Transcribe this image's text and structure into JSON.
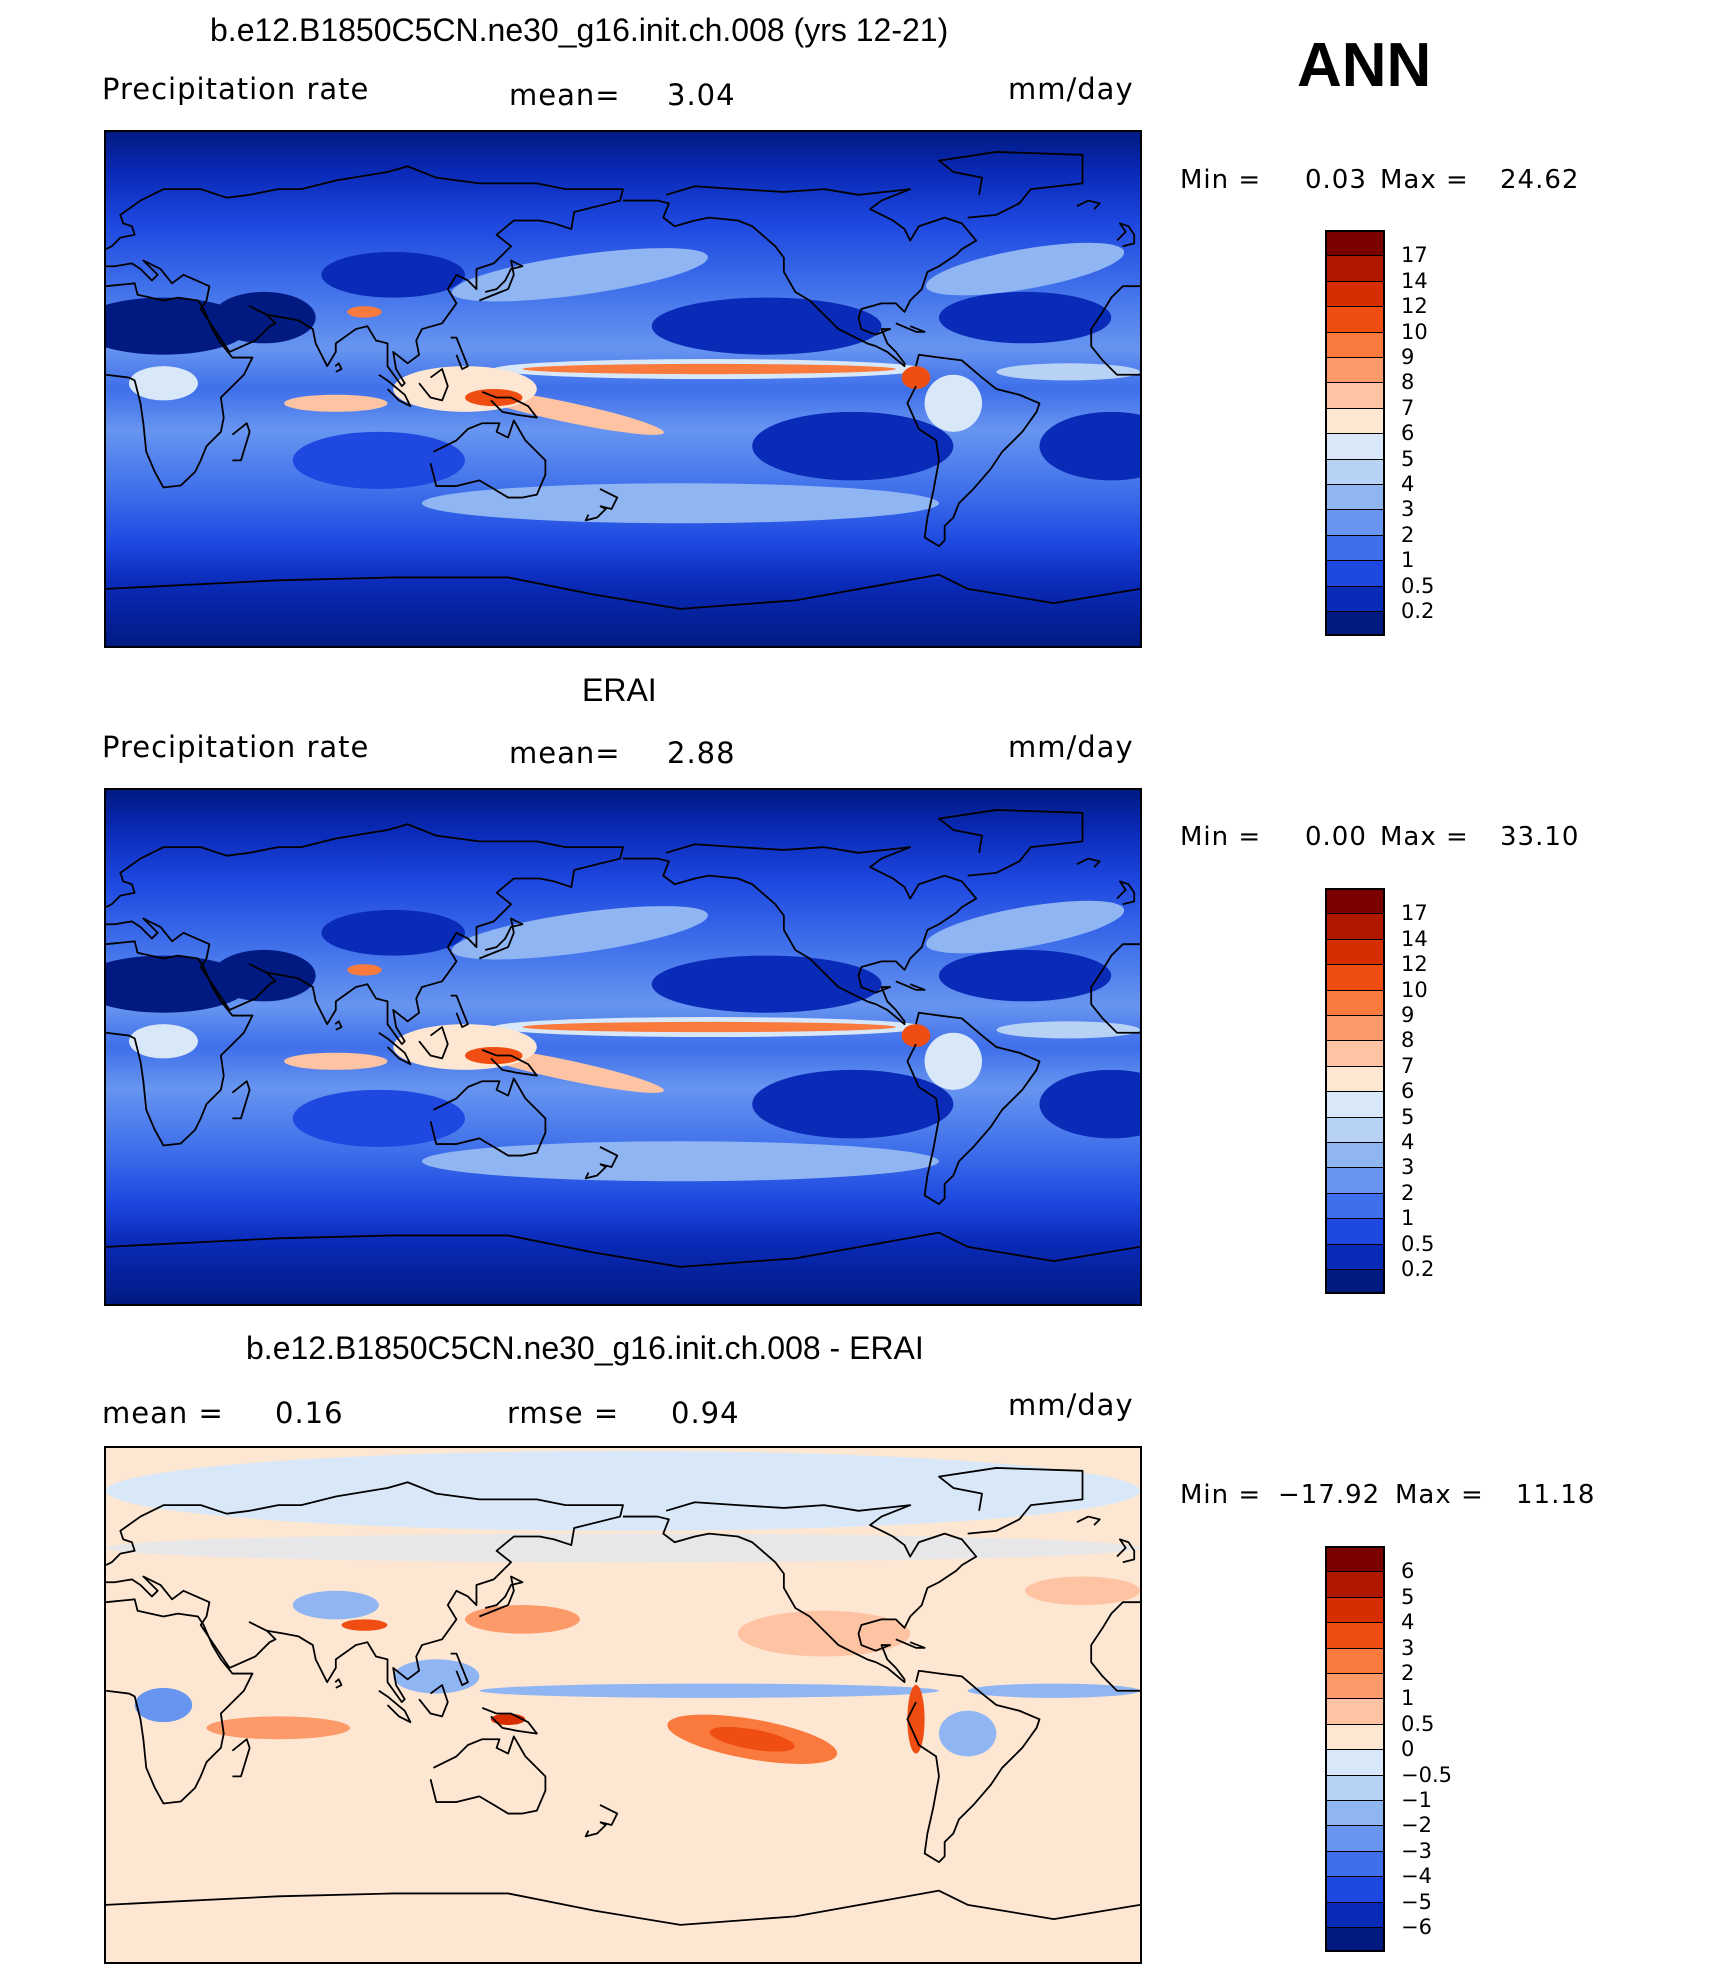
{
  "season": "ANN",
  "panels": [
    {
      "title": "b.e12.B1850C5CN.ne30_g16.init.ch.008 (yrs 12-21)",
      "left_label": "Precipitation  rate",
      "center_prefix": "mean=",
      "center_value": "3.04",
      "units": "mm/day",
      "min_label": "Min  =",
      "min_value": "0.03",
      "max_label": "Max  =",
      "max_value": "24.62",
      "colorbar": {
        "labels": [
          "17",
          "14",
          "12",
          "10",
          "9",
          "8",
          "7",
          "6",
          "5",
          "4",
          "3",
          "2",
          "1",
          "0.5",
          "0.2"
        ],
        "colors": [
          "#7a0000",
          "#b01800",
          "#d72e00",
          "#f04d12",
          "#fa7a3e",
          "#fc9a6a",
          "#fdc3a2",
          "#fde7d3",
          "#d8e8f8",
          "#b8d2f5",
          "#90b5f3",
          "#6795f0",
          "#3f6fea",
          "#1e48e0",
          "#0a2ab8",
          "#001a82"
        ]
      },
      "map_type": "field"
    },
    {
      "title": "ERAI",
      "left_label": "Precipitation  rate",
      "center_prefix": "mean=",
      "center_value": "2.88",
      "units": "mm/day",
      "min_label": "Min  =",
      "min_value": "0.00",
      "max_label": "Max  =",
      "max_value": "33.10",
      "colorbar": {
        "labels": [
          "17",
          "14",
          "12",
          "10",
          "9",
          "8",
          "7",
          "6",
          "5",
          "4",
          "3",
          "2",
          "1",
          "0.5",
          "0.2"
        ],
        "colors": [
          "#7a0000",
          "#b01800",
          "#d72e00",
          "#f04d12",
          "#fa7a3e",
          "#fc9a6a",
          "#fdc3a2",
          "#fde7d3",
          "#d8e8f8",
          "#b8d2f5",
          "#90b5f3",
          "#6795f0",
          "#3f6fea",
          "#1e48e0",
          "#0a2ab8",
          "#001a82"
        ]
      },
      "map_type": "field"
    },
    {
      "title": "b.e12.B1850C5CN.ne30_g16.init.ch.008 - ERAI",
      "left_label": "mean  =",
      "left_value": "0.16",
      "center_prefix": "rmse  =",
      "center_value": "0.94",
      "units": "mm/day",
      "min_label": "Min  =",
      "min_value": "−17.92",
      "max_label": "Max  =",
      "max_value": "11.18",
      "colorbar": {
        "labels": [
          "6",
          "5",
          "4",
          "3",
          "2",
          "1",
          "0.5",
          "0",
          "−0.5",
          "−1",
          "−2",
          "−3",
          "−4",
          "−5",
          "−6"
        ],
        "colors": [
          "#7a0000",
          "#b01800",
          "#d72e00",
          "#f04d12",
          "#fa7a3e",
          "#fc9a6a",
          "#fdc3a2",
          "#fde7d3",
          "#d8e8f8",
          "#b8d2f5",
          "#90b5f3",
          "#6795f0",
          "#3f6fea",
          "#1e48e0",
          "#0a2ab8",
          "#001a82"
        ]
      },
      "map_type": "diff"
    }
  ]
}
